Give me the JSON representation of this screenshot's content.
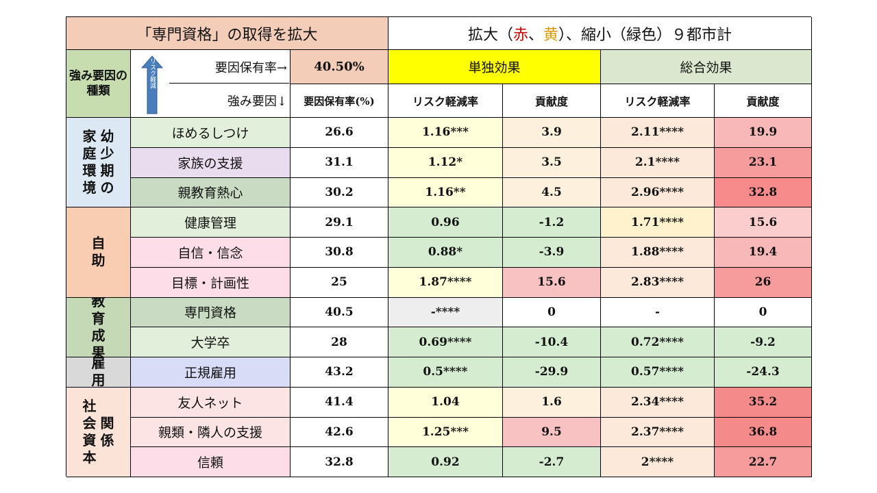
{
  "title_left": "「専門資格」の取得を拡大",
  "title_right_parts": [
    "拡大（",
    "赤",
    "、",
    "黄",
    "）、縮小（緑色）９都市計"
  ],
  "colors": {
    "red": "#cc0000",
    "yellow": "#d89a00",
    "arrow": "#4a7ebb"
  },
  "header": {
    "strength_type": "強み要因の種類",
    "rate_label": "要因保有率→",
    "rate_value": "40.50%",
    "factor_label": "強み要因↓",
    "single_effect": "単独効果",
    "total_effect": "総合効果",
    "rate_col": "要因保有率(%)",
    "risk_reduction": "リスク軽減率",
    "contribution": "貢献度",
    "arrow_text": "リスク軽減"
  },
  "groups": [
    {
      "cols": [
        "家庭環境",
        "幼少期の"
      ],
      "bg": "#dce8f3"
    },
    {
      "cols": [
        "自助"
      ],
      "bg": "#f8cdb1"
    },
    {
      "cols": [
        "教育成果"
      ],
      "bg": "#c6d9b6"
    },
    {
      "cols": [
        "雇用"
      ],
      "bg": "#d9d9d9"
    },
    {
      "cols": [
        "社会資本",
        "関係"
      ],
      "bg": "#fce3d8"
    }
  ],
  "rows": [
    {
      "name": "ほめるしつけ",
      "rate": "26.6",
      "s_risk": "1.16***",
      "s_contrib": "3.9",
      "t_risk": "2.11****",
      "t_contrib": "19.9"
    },
    {
      "name": "家族の支援",
      "rate": "31.1",
      "s_risk": "1.12*",
      "s_contrib": "3.5",
      "t_risk": "2.1****",
      "t_contrib": "23.1"
    },
    {
      "name": "親教育熱心",
      "rate": "30.2",
      "s_risk": "1.16**",
      "s_contrib": "4.5",
      "t_risk": "2.96****",
      "t_contrib": "32.8"
    },
    {
      "name": "健康管理",
      "rate": "29.1",
      "s_risk": "0.96",
      "s_contrib": "-1.2",
      "t_risk": "1.71****",
      "t_contrib": "15.6"
    },
    {
      "name": "自信・信念",
      "rate": "30.8",
      "s_risk": "0.88*",
      "s_contrib": "-3.9",
      "t_risk": "1.88****",
      "t_contrib": "19.4"
    },
    {
      "name": "目標・計画性",
      "rate": "25",
      "s_risk": "1.87****",
      "s_contrib": "15.6",
      "t_risk": "2.83****",
      "t_contrib": "26"
    },
    {
      "name": "専門資格",
      "rate": "40.5",
      "s_risk": "-****",
      "s_contrib": "0",
      "t_risk": "-",
      "t_contrib": "0"
    },
    {
      "name": "大学卒",
      "rate": "28",
      "s_risk": "0.69****",
      "s_contrib": "-10.4",
      "t_risk": "0.72****",
      "t_contrib": "-9.2"
    },
    {
      "name": "正規雇用",
      "rate": "43.2",
      "s_risk": "0.5****",
      "s_contrib": "-29.9",
      "t_risk": "0.57****",
      "t_contrib": "-24.3"
    },
    {
      "name": "友人ネット",
      "rate": "41.4",
      "s_risk": "1.04",
      "s_contrib": "1.6",
      "t_risk": "2.34****",
      "t_contrib": "35.2"
    },
    {
      "name": "親類・隣人の支援",
      "rate": "42.6",
      "s_risk": "1.25***",
      "s_contrib": "9.5",
      "t_risk": "2.37****",
      "t_contrib": "36.8"
    },
    {
      "name": "信頼",
      "rate": "32.8",
      "s_risk": "0.92",
      "s_contrib": "-2.7",
      "t_risk": "2****",
      "t_contrib": "22.7"
    }
  ],
  "cell_colors": {
    "names": [
      "#e2efda",
      "#eadcef",
      "#c9dcc3",
      "#e2efda",
      "#fcdde8",
      "#fcdde8",
      "#c9dcc3",
      "#e2efda",
      "#d9dcf7",
      "#fce4e4",
      "#fce4e4",
      "#fcdde8"
    ],
    "s_risk": [
      "#ffffd9",
      "#ffffd9",
      "#ffffd9",
      "#d5ecd0",
      "#d5ecd0",
      "#ffffd9",
      "#eeeeee",
      "#d5ecd0",
      "#d5ecd0",
      "#ffffd9",
      "#ffffd9",
      "#d5ecd0"
    ],
    "s_contrib": [
      "#fdf0dc",
      "#fdf0dc",
      "#fdf0dc",
      "#d5ecd0",
      "#d5ecd0",
      "#f9c2c2",
      "#ffffff",
      "#d5ecd0",
      "#d5ecd0",
      "#fdf0dc",
      "#f9c2c2",
      "#d5ecd0"
    ],
    "t_risk": [
      "#fde9d9",
      "#fde9d9",
      "#fde9d9",
      "#fff2cc",
      "#fde9d9",
      "#fde9d9",
      "#ffffff",
      "#d5ecd0",
      "#d5ecd0",
      "#fde9d9",
      "#fde9d9",
      "#fde9d9"
    ],
    "t_contrib": [
      "#f9b8b8",
      "#f79c9c",
      "#f78a8a",
      "#fbcdcd",
      "#f9b8b8",
      "#f79c9c",
      "#ffffff",
      "#d5ecd0",
      "#d5ecd0",
      "#f58a8a",
      "#f58a8a",
      "#f79c9c"
    ]
  }
}
